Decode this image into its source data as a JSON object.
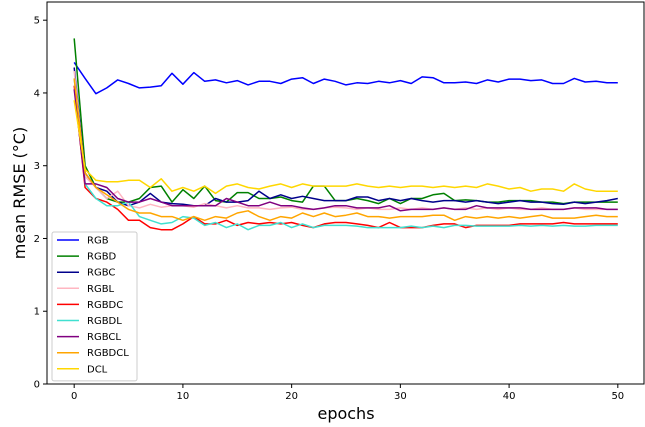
{
  "chart_data": {
    "type": "line",
    "xlabel": "epochs",
    "ylabel": "mean RMSE (°C)",
    "xlim": [
      -2.5,
      52.5
    ],
    "ylim": [
      0,
      5.25
    ],
    "xticks": [
      0,
      10,
      20,
      30,
      40,
      50
    ],
    "yticks": [
      0,
      1,
      2,
      3,
      4,
      5
    ],
    "legend_position": "lower-left",
    "grid": false,
    "x": [
      0,
      1,
      2,
      3,
      4,
      5,
      6,
      7,
      8,
      9,
      10,
      11,
      12,
      13,
      14,
      15,
      16,
      17,
      18,
      19,
      20,
      21,
      22,
      23,
      24,
      25,
      26,
      27,
      28,
      29,
      30,
      31,
      32,
      33,
      34,
      35,
      36,
      37,
      38,
      39,
      40,
      41,
      42,
      43,
      44,
      45,
      46,
      47,
      48,
      49,
      50
    ],
    "series": [
      {
        "name": "RGB",
        "color": "#0000ff",
        "values": [
          4.42,
          4.2,
          3.99,
          4.07,
          4.18,
          4.13,
          4.07,
          4.08,
          4.1,
          4.27,
          4.12,
          4.28,
          4.16,
          4.18,
          4.14,
          4.17,
          4.11,
          4.16,
          4.16,
          4.13,
          4.19,
          4.21,
          4.13,
          4.19,
          4.16,
          4.11,
          4.14,
          4.13,
          4.16,
          4.14,
          4.17,
          4.13,
          4.22,
          4.21,
          4.14,
          4.14,
          4.15,
          4.13,
          4.18,
          4.15,
          4.19,
          4.19,
          4.17,
          4.18,
          4.13,
          4.13,
          4.2,
          4.15,
          4.16,
          4.14,
          4.14
        ]
      },
      {
        "name": "RGBD",
        "color": "#008000",
        "values": [
          4.75,
          3.0,
          2.7,
          2.55,
          2.5,
          2.5,
          2.55,
          2.7,
          2.72,
          2.5,
          2.67,
          2.55,
          2.72,
          2.52,
          2.5,
          2.63,
          2.63,
          2.55,
          2.55,
          2.57,
          2.52,
          2.5,
          2.72,
          2.72,
          2.52,
          2.52,
          2.55,
          2.52,
          2.48,
          2.55,
          2.48,
          2.55,
          2.55,
          2.6,
          2.62,
          2.52,
          2.53,
          2.52,
          2.5,
          2.5,
          2.52,
          2.52,
          2.52,
          2.5,
          2.5,
          2.48,
          2.5,
          2.5,
          2.5,
          2.5,
          2.5
        ]
      },
      {
        "name": "RGBC",
        "color": "#00008b",
        "values": [
          4.35,
          2.9,
          2.7,
          2.65,
          2.5,
          2.45,
          2.5,
          2.62,
          2.5,
          2.48,
          2.47,
          2.45,
          2.45,
          2.55,
          2.5,
          2.5,
          2.52,
          2.65,
          2.55,
          2.6,
          2.55,
          2.58,
          2.55,
          2.52,
          2.52,
          2.52,
          2.57,
          2.57,
          2.52,
          2.55,
          2.52,
          2.55,
          2.52,
          2.5,
          2.52,
          2.52,
          2.5,
          2.52,
          2.5,
          2.48,
          2.5,
          2.52,
          2.5,
          2.5,
          2.48,
          2.47,
          2.5,
          2.48,
          2.5,
          2.52,
          2.55
        ]
      },
      {
        "name": "RGBL",
        "color": "#ffb6c1",
        "values": [
          4.3,
          2.85,
          2.7,
          2.55,
          2.65,
          2.45,
          2.42,
          2.47,
          2.43,
          2.45,
          2.45,
          2.43,
          2.48,
          2.45,
          2.42,
          2.45,
          2.42,
          2.42,
          2.4,
          2.42,
          2.43,
          2.4,
          2.4,
          2.42,
          2.43,
          2.42,
          2.4,
          2.42,
          2.4,
          2.4,
          2.42,
          2.4,
          2.42,
          2.4,
          2.42,
          2.4,
          2.42,
          2.4,
          2.42,
          2.4,
          2.42,
          2.4,
          2.4,
          2.42,
          2.4,
          2.4,
          2.42,
          2.4,
          2.4,
          2.4,
          2.4
        ]
      },
      {
        "name": "RGBDC",
        "color": "#ff0000",
        "values": [
          4.1,
          2.7,
          2.55,
          2.5,
          2.4,
          2.25,
          2.25,
          2.15,
          2.12,
          2.12,
          2.2,
          2.3,
          2.2,
          2.2,
          2.25,
          2.18,
          2.22,
          2.2,
          2.22,
          2.2,
          2.22,
          2.18,
          2.15,
          2.2,
          2.22,
          2.22,
          2.2,
          2.18,
          2.15,
          2.22,
          2.15,
          2.15,
          2.15,
          2.18,
          2.2,
          2.2,
          2.15,
          2.18,
          2.18,
          2.18,
          2.18,
          2.2,
          2.2,
          2.2,
          2.2,
          2.22,
          2.2,
          2.2,
          2.2,
          2.2,
          2.2
        ]
      },
      {
        "name": "RGBDL",
        "color": "#40e0d0",
        "values": [
          4.2,
          2.75,
          2.55,
          2.45,
          2.45,
          2.5,
          2.3,
          2.25,
          2.2,
          2.22,
          2.3,
          2.28,
          2.18,
          2.22,
          2.15,
          2.2,
          2.12,
          2.18,
          2.18,
          2.22,
          2.15,
          2.2,
          2.15,
          2.18,
          2.18,
          2.18,
          2.17,
          2.15,
          2.15,
          2.15,
          2.15,
          2.17,
          2.15,
          2.17,
          2.15,
          2.18,
          2.18,
          2.17,
          2.17,
          2.17,
          2.17,
          2.18,
          2.17,
          2.18,
          2.17,
          2.18,
          2.17,
          2.17,
          2.18,
          2.18,
          2.18
        ]
      },
      {
        "name": "RGBCL",
        "color": "#800080",
        "values": [
          4.05,
          2.75,
          2.75,
          2.7,
          2.55,
          2.5,
          2.5,
          2.55,
          2.5,
          2.45,
          2.45,
          2.45,
          2.45,
          2.45,
          2.55,
          2.5,
          2.45,
          2.45,
          2.5,
          2.45,
          2.45,
          2.42,
          2.4,
          2.42,
          2.45,
          2.45,
          2.42,
          2.42,
          2.42,
          2.45,
          2.38,
          2.4,
          2.4,
          2.4,
          2.42,
          2.4,
          2.4,
          2.45,
          2.42,
          2.42,
          2.42,
          2.42,
          2.4,
          2.4,
          2.4,
          2.4,
          2.42,
          2.42,
          2.42,
          2.4,
          2.4
        ]
      },
      {
        "name": "RGBDCL",
        "color": "#ffa500",
        "values": [
          4.2,
          2.9,
          2.7,
          2.6,
          2.5,
          2.4,
          2.35,
          2.35,
          2.3,
          2.3,
          2.25,
          2.3,
          2.25,
          2.3,
          2.28,
          2.35,
          2.38,
          2.3,
          2.25,
          2.3,
          2.28,
          2.35,
          2.3,
          2.35,
          2.3,
          2.32,
          2.35,
          2.3,
          2.3,
          2.28,
          2.3,
          2.3,
          2.3,
          2.32,
          2.32,
          2.25,
          2.3,
          2.28,
          2.3,
          2.28,
          2.3,
          2.28,
          2.3,
          2.32,
          2.28,
          2.28,
          2.28,
          2.3,
          2.32,
          2.3,
          2.3
        ]
      },
      {
        "name": "DCL",
        "color": "#ffd700",
        "values": [
          3.9,
          2.95,
          2.8,
          2.78,
          2.78,
          2.8,
          2.8,
          2.7,
          2.82,
          2.65,
          2.7,
          2.65,
          2.72,
          2.62,
          2.72,
          2.75,
          2.7,
          2.68,
          2.72,
          2.75,
          2.7,
          2.75,
          2.72,
          2.72,
          2.72,
          2.72,
          2.75,
          2.72,
          2.7,
          2.72,
          2.7,
          2.72,
          2.72,
          2.7,
          2.72,
          2.7,
          2.72,
          2.7,
          2.75,
          2.72,
          2.68,
          2.7,
          2.65,
          2.68,
          2.68,
          2.65,
          2.75,
          2.68,
          2.65,
          2.65,
          2.65
        ]
      }
    ]
  }
}
